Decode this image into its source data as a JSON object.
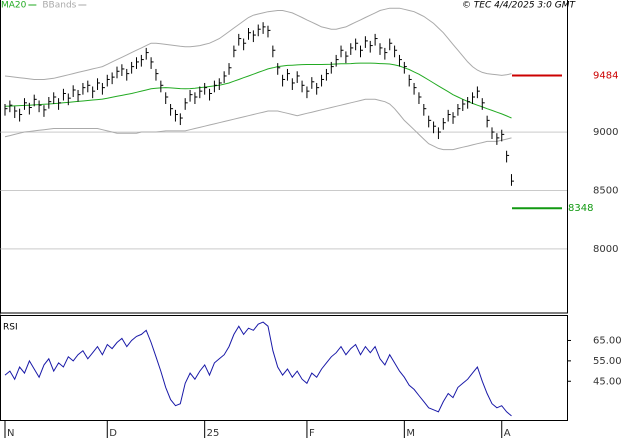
{
  "chart_data": [
    {
      "type": "ohlc",
      "credit": "© TEC 4/4/2025 3:0 GMT",
      "high": [
        9240,
        9270,
        9220,
        9200,
        9290,
        9250,
        9320,
        9270,
        9230,
        9300,
        9340,
        9290,
        9370,
        9330,
        9400,
        9360,
        9420,
        9440,
        9390,
        9460,
        9420,
        9490,
        9510,
        9560,
        9580,
        9540,
        9600,
        9640,
        9660,
        9720,
        9640,
        9540,
        9440,
        9340,
        9240,
        9190,
        9160,
        9290,
        9360,
        9340,
        9390,
        9420,
        9370,
        9440,
        9460,
        9520,
        9590,
        9740,
        9840,
        9800,
        9890,
        9870,
        9920,
        9940,
        9910,
        9740,
        9590,
        9490,
        9540,
        9460,
        9520,
        9440,
        9390,
        9470,
        9420,
        9490,
        9540,
        9600,
        9660,
        9740,
        9690,
        9760,
        9800,
        9740,
        9820,
        9780,
        9840,
        9760,
        9720,
        9800,
        9740,
        9660,
        9600,
        9490,
        9420,
        9340,
        9240,
        9140,
        9090,
        9040,
        9120,
        9190,
        9170,
        9240,
        9280,
        9300,
        9340,
        9390,
        9290,
        9140,
        9040,
        8990,
        9020,
        8840,
        8640
      ],
      "low": [
        9140,
        9170,
        9120,
        9090,
        9190,
        9150,
        9220,
        9170,
        9130,
        9200,
        9240,
        9190,
        9270,
        9230,
        9300,
        9260,
        9320,
        9340,
        9290,
        9360,
        9320,
        9390,
        9410,
        9460,
        9480,
        9440,
        9500,
        9540,
        9560,
        9620,
        9540,
        9440,
        9340,
        9240,
        9140,
        9090,
        9060,
        9190,
        9260,
        9240,
        9290,
        9320,
        9270,
        9340,
        9360,
        9420,
        9490,
        9640,
        9740,
        9700,
        9790,
        9770,
        9820,
        9840,
        9810,
        9640,
        9490,
        9390,
        9440,
        9360,
        9420,
        9340,
        9290,
        9370,
        9320,
        9390,
        9440,
        9500,
        9560,
        9640,
        9590,
        9660,
        9700,
        9640,
        9720,
        9680,
        9740,
        9660,
        9620,
        9700,
        9640,
        9560,
        9500,
        9390,
        9320,
        9240,
        9140,
        9040,
        8990,
        8940,
        9020,
        9090,
        9070,
        9140,
        9180,
        9200,
        9240,
        9290,
        9190,
        9040,
        8940,
        8890,
        8920,
        8740,
        8540
      ],
      "close": [
        9200,
        9230,
        9180,
        9150,
        9250,
        9210,
        9280,
        9230,
        9190,
        9260,
        9300,
        9250,
        9330,
        9290,
        9360,
        9320,
        9380,
        9400,
        9350,
        9420,
        9380,
        9450,
        9470,
        9520,
        9540,
        9500,
        9560,
        9600,
        9620,
        9680,
        9600,
        9500,
        9400,
        9300,
        9200,
        9150,
        9120,
        9250,
        9320,
        9300,
        9350,
        9380,
        9330,
        9400,
        9420,
        9480,
        9550,
        9700,
        9800,
        9760,
        9850,
        9830,
        9880,
        9900,
        9870,
        9700,
        9550,
        9450,
        9500,
        9420,
        9480,
        9400,
        9350,
        9430,
        9380,
        9450,
        9500,
        9560,
        9620,
        9700,
        9650,
        9720,
        9760,
        9700,
        9780,
        9740,
        9800,
        9720,
        9680,
        9760,
        9700,
        9620,
        9560,
        9450,
        9380,
        9300,
        9200,
        9100,
        9050,
        9000,
        9080,
        9150,
        9130,
        9200,
        9240,
        9260,
        9300,
        9350,
        9250,
        9100,
        9000,
        8950,
        8980,
        8800,
        8580
      ],
      "bar_color": "#000000",
      "series": [
        {
          "name": "MA20",
          "color": "#22aa22",
          "values": [
            9220,
            9222,
            9224,
            9226,
            9228,
            9230,
            9232,
            9235,
            9238,
            9240,
            9243,
            9246,
            9250,
            9254,
            9258,
            9262,
            9266,
            9270,
            9274,
            9278,
            9282,
            9290,
            9298,
            9306,
            9314,
            9322,
            9330,
            9340,
            9350,
            9360,
            9370,
            9375,
            9378,
            9380,
            9378,
            9375,
            9372,
            9370,
            9372,
            9375,
            9380,
            9385,
            9390,
            9395,
            9400,
            9410,
            9420,
            9435,
            9450,
            9465,
            9480,
            9495,
            9510,
            9525,
            9540,
            9550,
            9560,
            9565,
            9570,
            9572,
            9575,
            9577,
            9578,
            9578,
            9578,
            9578,
            9579,
            9580,
            9582,
            9584,
            9585,
            9586,
            9588,
            9590,
            9590,
            9590,
            9588,
            9586,
            9584,
            9582,
            9575,
            9565,
            9550,
            9535,
            9515,
            9495,
            9470,
            9445,
            9420,
            9395,
            9370,
            9345,
            9320,
            9300,
            9280,
            9262,
            9245,
            9230,
            9215,
            9200,
            9185,
            9170,
            9155,
            9138,
            9120
          ]
        },
        {
          "name": "BBands",
          "color": "#aaaaaa",
          "upper": [
            9480,
            9475,
            9470,
            9465,
            9460,
            9455,
            9450,
            9450,
            9450,
            9455,
            9460,
            9470,
            9480,
            9490,
            9500,
            9510,
            9520,
            9530,
            9540,
            9550,
            9560,
            9580,
            9600,
            9620,
            9640,
            9660,
            9680,
            9700,
            9720,
            9740,
            9760,
            9760,
            9755,
            9750,
            9745,
            9740,
            9735,
            9730,
            9730,
            9735,
            9740,
            9750,
            9760,
            9780,
            9800,
            9830,
            9860,
            9890,
            9920,
            9950,
            9980,
            10000,
            10010,
            10020,
            10030,
            10035,
            10040,
            10040,
            10030,
            10020,
            10000,
            9980,
            9960,
            9940,
            9920,
            9900,
            9890,
            9880,
            9880,
            9890,
            9900,
            9920,
            9940,
            9960,
            9980,
            10000,
            10020,
            10040,
            10050,
            10060,
            10060,
            10060,
            10050,
            10040,
            10030,
            10010,
            9990,
            9960,
            9930,
            9890,
            9850,
            9800,
            9750,
            9700,
            9650,
            9600,
            9560,
            9530,
            9510,
            9500,
            9495,
            9490,
            9485,
            9490,
            9500
          ],
          "lower": [
            8960,
            8970,
            8980,
            8990,
            9000,
            9005,
            9010,
            9015,
            9020,
            9025,
            9030,
            9030,
            9030,
            9030,
            9030,
            9030,
            9030,
            9030,
            9030,
            9030,
            9020,
            9010,
            9000,
            8990,
            8990,
            8990,
            8990,
            8990,
            9000,
            9000,
            9000,
            9000,
            9005,
            9010,
            9010,
            9010,
            9010,
            9010,
            9020,
            9030,
            9040,
            9050,
            9060,
            9070,
            9080,
            9090,
            9100,
            9110,
            9120,
            9130,
            9140,
            9150,
            9160,
            9170,
            9180,
            9180,
            9180,
            9170,
            9160,
            9150,
            9140,
            9150,
            9160,
            9170,
            9180,
            9190,
            9200,
            9210,
            9220,
            9230,
            9240,
            9250,
            9260,
            9270,
            9280,
            9280,
            9280,
            9270,
            9260,
            9240,
            9200,
            9150,
            9100,
            9060,
            9020,
            8980,
            8940,
            8900,
            8880,
            8860,
            8850,
            8850,
            8850,
            8860,
            8870,
            8880,
            8890,
            8900,
            8910,
            8920,
            8920,
            8920,
            8930,
            8940,
            8950
          ]
        }
      ],
      "levels": [
        {
          "value": 9484,
          "color": "#cc0000"
        },
        {
          "value": 8348,
          "color": "#119911"
        }
      ],
      "ylim": [
        7460,
        10130
      ],
      "yticks": [
        8000,
        8500,
        9000
      ],
      "grid": true
    },
    {
      "type": "line",
      "title": "RSI",
      "categories": [
        "N",
        null,
        null,
        null,
        null,
        null,
        null,
        null,
        null,
        null,
        null,
        null,
        null,
        null,
        null,
        null,
        null,
        null,
        null,
        null,
        null,
        "D",
        null,
        null,
        null,
        null,
        null,
        null,
        null,
        null,
        null,
        null,
        null,
        null,
        null,
        null,
        null,
        null,
        null,
        null,
        null,
        "25",
        null,
        null,
        null,
        null,
        null,
        null,
        null,
        null,
        null,
        null,
        null,
        null,
        null,
        null,
        null,
        null,
        null,
        null,
        null,
        null,
        "F",
        null,
        null,
        null,
        null,
        null,
        null,
        null,
        null,
        null,
        null,
        null,
        null,
        null,
        null,
        null,
        null,
        null,
        null,
        null,
        "M",
        null,
        null,
        null,
        null,
        null,
        null,
        null,
        null,
        null,
        null,
        null,
        null,
        null,
        null,
        null,
        null,
        null,
        null,
        null,
        "A",
        null,
        null
      ],
      "color": "#1a1aa8",
      "values": [
        48,
        50,
        46,
        52,
        49,
        55,
        51,
        47,
        53,
        56,
        50,
        54,
        52,
        57,
        55,
        58,
        60,
        56,
        59,
        62,
        58,
        63,
        61,
        64,
        66,
        62,
        65,
        67,
        68,
        70,
        64,
        57,
        50,
        42,
        36,
        33,
        34,
        44,
        49,
        46,
        50,
        53,
        48,
        54,
        56,
        58,
        62,
        68,
        72,
        68,
        71,
        70,
        73,
        74,
        72,
        60,
        52,
        48,
        51,
        47,
        50,
        46,
        44,
        49,
        47,
        51,
        54,
        57,
        59,
        62,
        58,
        61,
        63,
        58,
        62,
        59,
        62,
        56,
        53,
        58,
        54,
        50,
        47,
        43,
        41,
        38,
        35,
        32,
        31,
        30,
        35,
        39,
        37,
        42,
        44,
        46,
        49,
        52,
        45,
        39,
        34,
        32,
        33,
        30,
        28
      ],
      "ylim": [
        26,
        77
      ],
      "yticks": [
        {
          "value": 45,
          "label": "45.00"
        },
        {
          "value": 55,
          "label": "55.00"
        },
        {
          "value": 65,
          "label": "65.00"
        }
      ]
    }
  ]
}
